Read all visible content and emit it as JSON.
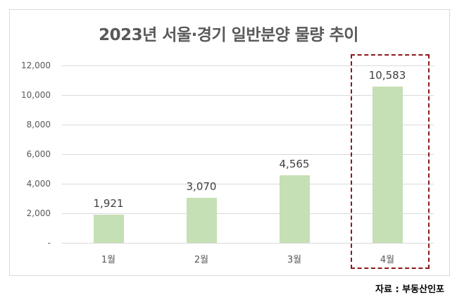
{
  "chart_data": {
    "type": "bar",
    "title": "2023년 서울·경기 일반분양 물량 추이",
    "categories": [
      "1월",
      "2월",
      "3월",
      "4월"
    ],
    "values": [
      1921,
      3070,
      4565,
      10583
    ],
    "value_labels": [
      "1,921",
      "3,070",
      "4,565",
      "10,583"
    ],
    "xlabel": "",
    "ylabel": "",
    "ylim": [
      0,
      12000
    ],
    "yticks": [
      0,
      2000,
      4000,
      6000,
      8000,
      10000,
      12000
    ],
    "ytick_labels": [
      "-",
      "2,000",
      "4,000",
      "6,000",
      "8,000",
      "10,000",
      "12,000"
    ],
    "grid": true,
    "legend": "none",
    "bar_color": "#c5e0b4",
    "highlight": {
      "category": "4월",
      "style": "dashed box",
      "color": "#8b1a1a"
    },
    "source": "자료 : 부동산인포"
  }
}
